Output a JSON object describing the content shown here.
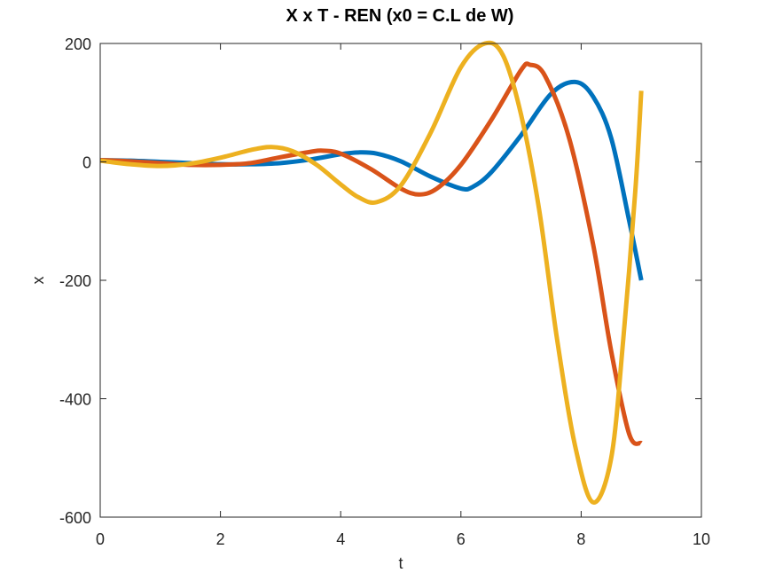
{
  "chart_data": {
    "type": "line",
    "title": "X x T - REN (x0 = C.L de W)",
    "xlabel": "t",
    "ylabel": "x",
    "xlim": [
      0,
      10
    ],
    "ylim": [
      -600,
      200
    ],
    "xticks": [
      0,
      2,
      4,
      6,
      8,
      10
    ],
    "yticks": [
      -600,
      -400,
      -200,
      0,
      200
    ],
    "xtick_labels": [
      "0",
      "2",
      "4",
      "6",
      "8",
      "10"
    ],
    "ytick_labels": [
      "-600",
      "-400",
      "-200",
      "0",
      "200"
    ],
    "grid": false,
    "legend": "none",
    "series": [
      {
        "color": "#0072BD",
        "points": [
          [
            0,
            3
          ],
          [
            0.5,
            2
          ],
          [
            1,
            0
          ],
          [
            1.5,
            -2
          ],
          [
            2,
            -4
          ],
          [
            2.5,
            -4
          ],
          [
            3,
            -2
          ],
          [
            3.5,
            4
          ],
          [
            4,
            13
          ],
          [
            4.3,
            16
          ],
          [
            4.6,
            14
          ],
          [
            5,
            1
          ],
          [
            5.5,
            -25
          ],
          [
            6,
            -45
          ],
          [
            6.2,
            -42
          ],
          [
            6.5,
            -18
          ],
          [
            7,
            45
          ],
          [
            7.5,
            115
          ],
          [
            7.9,
            135
          ],
          [
            8.2,
            110
          ],
          [
            8.5,
            40
          ],
          [
            8.8,
            -100
          ],
          [
            9,
            -200
          ]
        ]
      },
      {
        "color": "#D95319",
        "points": [
          [
            0,
            3
          ],
          [
            0.5,
            1
          ],
          [
            1,
            -2
          ],
          [
            1.5,
            -5
          ],
          [
            2,
            -5
          ],
          [
            2.5,
            -2
          ],
          [
            3,
            8
          ],
          [
            3.5,
            17
          ],
          [
            3.7,
            19
          ],
          [
            4,
            14
          ],
          [
            4.5,
            -12
          ],
          [
            5,
            -45
          ],
          [
            5.3,
            -55
          ],
          [
            5.6,
            -45
          ],
          [
            6,
            -5
          ],
          [
            6.5,
            70
          ],
          [
            7,
            155
          ],
          [
            7.15,
            164
          ],
          [
            7.4,
            145
          ],
          [
            7.8,
            40
          ],
          [
            8.2,
            -140
          ],
          [
            8.5,
            -320
          ],
          [
            8.8,
            -460
          ],
          [
            9,
            -475
          ]
        ]
      },
      {
        "color": "#EDB120",
        "points": [
          [
            0,
            2
          ],
          [
            0.5,
            -4
          ],
          [
            1,
            -7
          ],
          [
            1.5,
            -3
          ],
          [
            2,
            7
          ],
          [
            2.5,
            20
          ],
          [
            2.85,
            25
          ],
          [
            3.2,
            18
          ],
          [
            3.6,
            -5
          ],
          [
            4,
            -38
          ],
          [
            4.3,
            -60
          ],
          [
            4.6,
            -68
          ],
          [
            5,
            -40
          ],
          [
            5.5,
            50
          ],
          [
            6,
            160
          ],
          [
            6.4,
            200
          ],
          [
            6.7,
            180
          ],
          [
            7,
            80
          ],
          [
            7.3,
            -80
          ],
          [
            7.6,
            -300
          ],
          [
            7.9,
            -480
          ],
          [
            8.2,
            -575
          ],
          [
            8.5,
            -500
          ],
          [
            8.7,
            -300
          ],
          [
            8.9,
            -50
          ],
          [
            9,
            120
          ]
        ]
      }
    ]
  }
}
